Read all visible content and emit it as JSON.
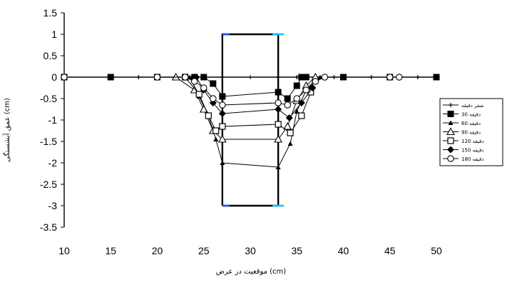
{
  "chart_data": {
    "type": "line",
    "xlabel": "موقعیت در عرض (cm)",
    "ylabel": "عمق آبشستگی (cm)",
    "xlim": [
      10,
      50
    ],
    "ylim": [
      -3.5,
      1.5
    ],
    "x_ticks": [
      "10",
      "15",
      "20",
      "25",
      "30",
      "35",
      "40",
      "45",
      "50"
    ],
    "y_ticks": [
      "1.5",
      "1",
      "0.5",
      "0",
      "-0.5",
      "-1",
      "-1.5",
      "-2",
      "-2.5",
      "-3",
      "-3.5"
    ],
    "grid": false,
    "legend_position": "right",
    "structure": {
      "x": [
        27,
        27,
        33,
        33,
        27
      ],
      "y": [
        -3,
        1,
        1,
        -3,
        -3
      ],
      "color": "#000000",
      "accent_color": "#00c8ff",
      "accent_color_2": "#3050ff"
    },
    "series": [
      {
        "name": "صفر دقیقه",
        "marker": "plus",
        "x": [
          10,
          15,
          18,
          20,
          22,
          23,
          24,
          25,
          27,
          33,
          35,
          36,
          37,
          38,
          39,
          40,
          43,
          45,
          48,
          50
        ],
        "y": [
          0,
          0,
          0,
          0,
          0,
          0,
          0,
          0,
          0,
          0,
          0,
          0,
          0,
          0,
          0,
          0,
          0,
          0,
          0,
          0
        ]
      },
      {
        "name": "30 دقیقه",
        "marker": "square-filled",
        "x": [
          10,
          15,
          20,
          24,
          25,
          26,
          27,
          33,
          34,
          35,
          35.5,
          36,
          40,
          45,
          50
        ],
        "y": [
          0,
          0,
          0,
          0,
          0,
          -0.15,
          -0.45,
          -0.35,
          -0.5,
          -0.2,
          0,
          0,
          0,
          0,
          0
        ]
      },
      {
        "name": "60 دقیقه",
        "marker": "triangle-filled",
        "x": [
          23.5,
          24.5,
          25.5,
          26.3,
          27,
          33,
          34.3,
          35,
          36,
          37,
          37.5
        ],
        "y": [
          0,
          -0.45,
          -0.9,
          -1.45,
          -2.0,
          -2.1,
          -1.55,
          -0.8,
          -0.3,
          -0.05,
          0
        ]
      },
      {
        "name": "90 دقیقه",
        "marker": "triangle-open",
        "x": [
          22,
          24,
          25,
          26,
          27,
          33,
          34,
          35,
          36,
          37
        ],
        "y": [
          0,
          -0.3,
          -0.75,
          -1.25,
          -1.45,
          -1.45,
          -1.15,
          -0.55,
          -0.2,
          0
        ]
      },
      {
        "name": "120 دقیقه",
        "marker": "square-open",
        "x": [
          23,
          24.5,
          25.5,
          26.3,
          27,
          33,
          34.3,
          35.5,
          36.5
        ],
        "y": [
          0,
          -0.4,
          -0.9,
          -1.25,
          -1.15,
          -1.1,
          -1.3,
          -0.9,
          -0.35
        ]
      },
      {
        "name": "150 دقیقه",
        "marker": "diamond-filled",
        "x": [
          24.2,
          25,
          26,
          27,
          33,
          34.2,
          35.5,
          36.7
        ],
        "y": [
          0,
          -0.3,
          -0.6,
          -0.85,
          -0.75,
          -0.95,
          -0.6,
          -0.25
        ]
      },
      {
        "name": "180 دقیقه",
        "marker": "circle-open",
        "x": [
          10,
          20,
          23,
          24,
          25,
          26,
          27,
          33,
          34,
          35,
          36,
          37,
          38,
          45,
          46
        ],
        "y": [
          0,
          0,
          0,
          -0.1,
          -0.25,
          -0.5,
          -0.65,
          -0.6,
          -0.65,
          -0.5,
          -0.3,
          -0.1,
          0,
          0,
          0
        ]
      }
    ]
  }
}
